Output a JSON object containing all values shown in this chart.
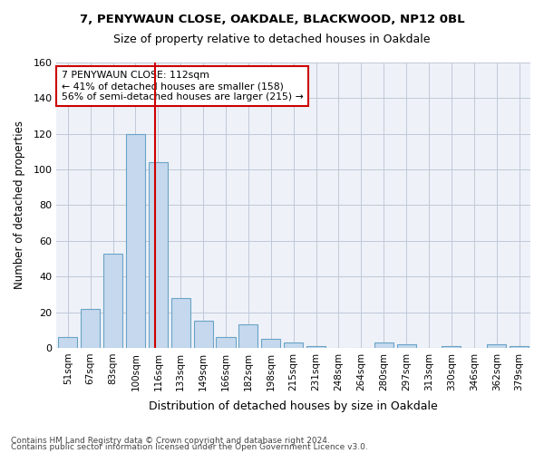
{
  "title1": "7, PENYWAUN CLOSE, OAKDALE, BLACKWOOD, NP12 0BL",
  "title2": "Size of property relative to detached houses in Oakdale",
  "xlabel": "Distribution of detached houses by size in Oakdale",
  "ylabel": "Number of detached properties",
  "categories": [
    "51sqm",
    "67sqm",
    "83sqm",
    "100sqm",
    "116sqm",
    "133sqm",
    "149sqm",
    "166sqm",
    "182sqm",
    "198sqm",
    "215sqm",
    "231sqm",
    "248sqm",
    "264sqm",
    "280sqm",
    "297sqm",
    "313sqm",
    "330sqm",
    "346sqm",
    "362sqm",
    "379sqm"
  ],
  "values": [
    6,
    22,
    53,
    120,
    104,
    28,
    15,
    6,
    13,
    5,
    3,
    1,
    0,
    0,
    3,
    2,
    0,
    1,
    0,
    2,
    1
  ],
  "bar_color": "#c5d8ed",
  "bar_edge_color": "#6aa3c8",
  "vline_x": 3.85,
  "vline_color": "#cc0000",
  "annotation_text": "7 PENYWAUN CLOSE: 112sqm\n← 41% of detached houses are smaller (158)\n56% of semi-detached houses are larger (215) →",
  "annotation_box_color": "#ffffff",
  "annotation_box_edge": "#cc0000",
  "footnote1": "Contains HM Land Registry data © Crown copyright and database right 2024.",
  "footnote2": "Contains public sector information licensed under the Open Government Licence v3.0.",
  "background_color": "#eef2f8",
  "ylim": [
    0,
    160
  ],
  "yticks": [
    0,
    20,
    40,
    60,
    80,
    100,
    120,
    140,
    160
  ]
}
